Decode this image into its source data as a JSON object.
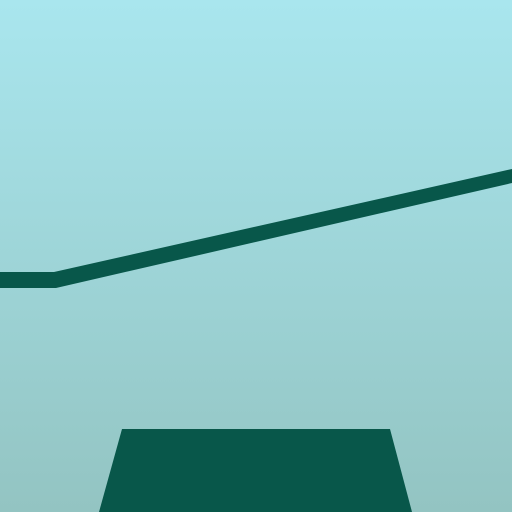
{
  "scene": {
    "sky_top_color": "#a9e6ee",
    "sky_bottom_color": "#93c4c2",
    "terrain_color": "#08574a",
    "objects": [
      "terrain-line",
      "platform-block"
    ]
  }
}
